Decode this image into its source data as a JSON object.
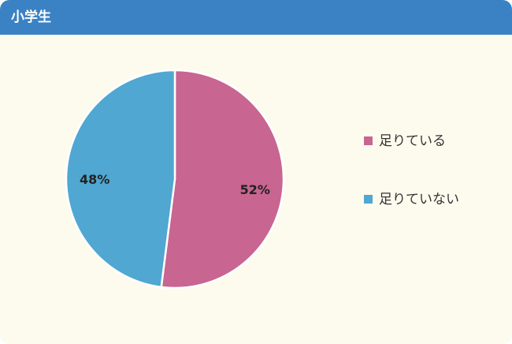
{
  "chart_data": {
    "type": "pie",
    "title": "小学生",
    "categories": [
      "足りている",
      "足りていない"
    ],
    "values": [
      52,
      48
    ],
    "value_labels": [
      "52%",
      "48%"
    ],
    "colors": [
      "#c86591",
      "#50a7d1"
    ],
    "legend": "right"
  }
}
